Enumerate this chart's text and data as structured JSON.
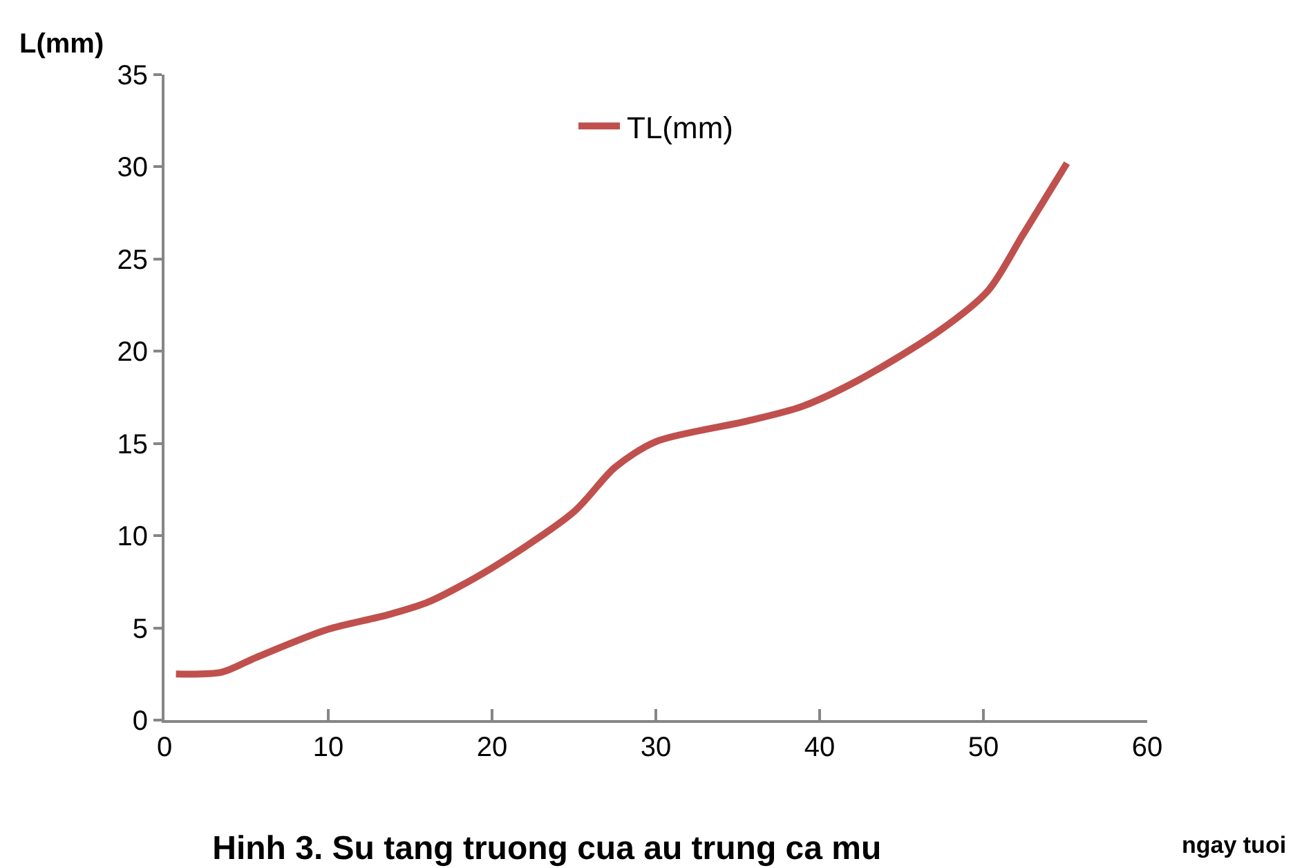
{
  "chart_data": {
    "type": "line",
    "title": "Hinh 3. Su tang truong cua au trung ca mu",
    "xlabel": "ngay tuoi",
    "ylabel": "L(mm)",
    "xlim": [
      0,
      60
    ],
    "xticks": [
      0,
      10,
      20,
      30,
      40,
      50,
      60
    ],
    "ylim": [
      0,
      35
    ],
    "yticks": [
      0,
      5,
      10,
      15,
      20,
      25,
      30,
      35
    ],
    "legend": "top",
    "marker": "none",
    "line_style": "solid",
    "series": [
      {
        "name": "TL(mm)",
        "color": "#c0504d",
        "x": [
          0.7,
          3.5,
          5.6,
          9.9,
          13.6,
          16.1,
          19.9,
          25,
          27.5,
          30,
          35.5,
          38.9,
          42.3,
          47.3,
          50.3,
          52.4,
          55.1
        ],
        "values": [
          2.5,
          2.6,
          3.4,
          4.9,
          5.7,
          6.4,
          8.2,
          11.3,
          13.7,
          15.1,
          16.2,
          17,
          18.4,
          21.1,
          23.3,
          26.3,
          30.2
        ]
      }
    ]
  }
}
